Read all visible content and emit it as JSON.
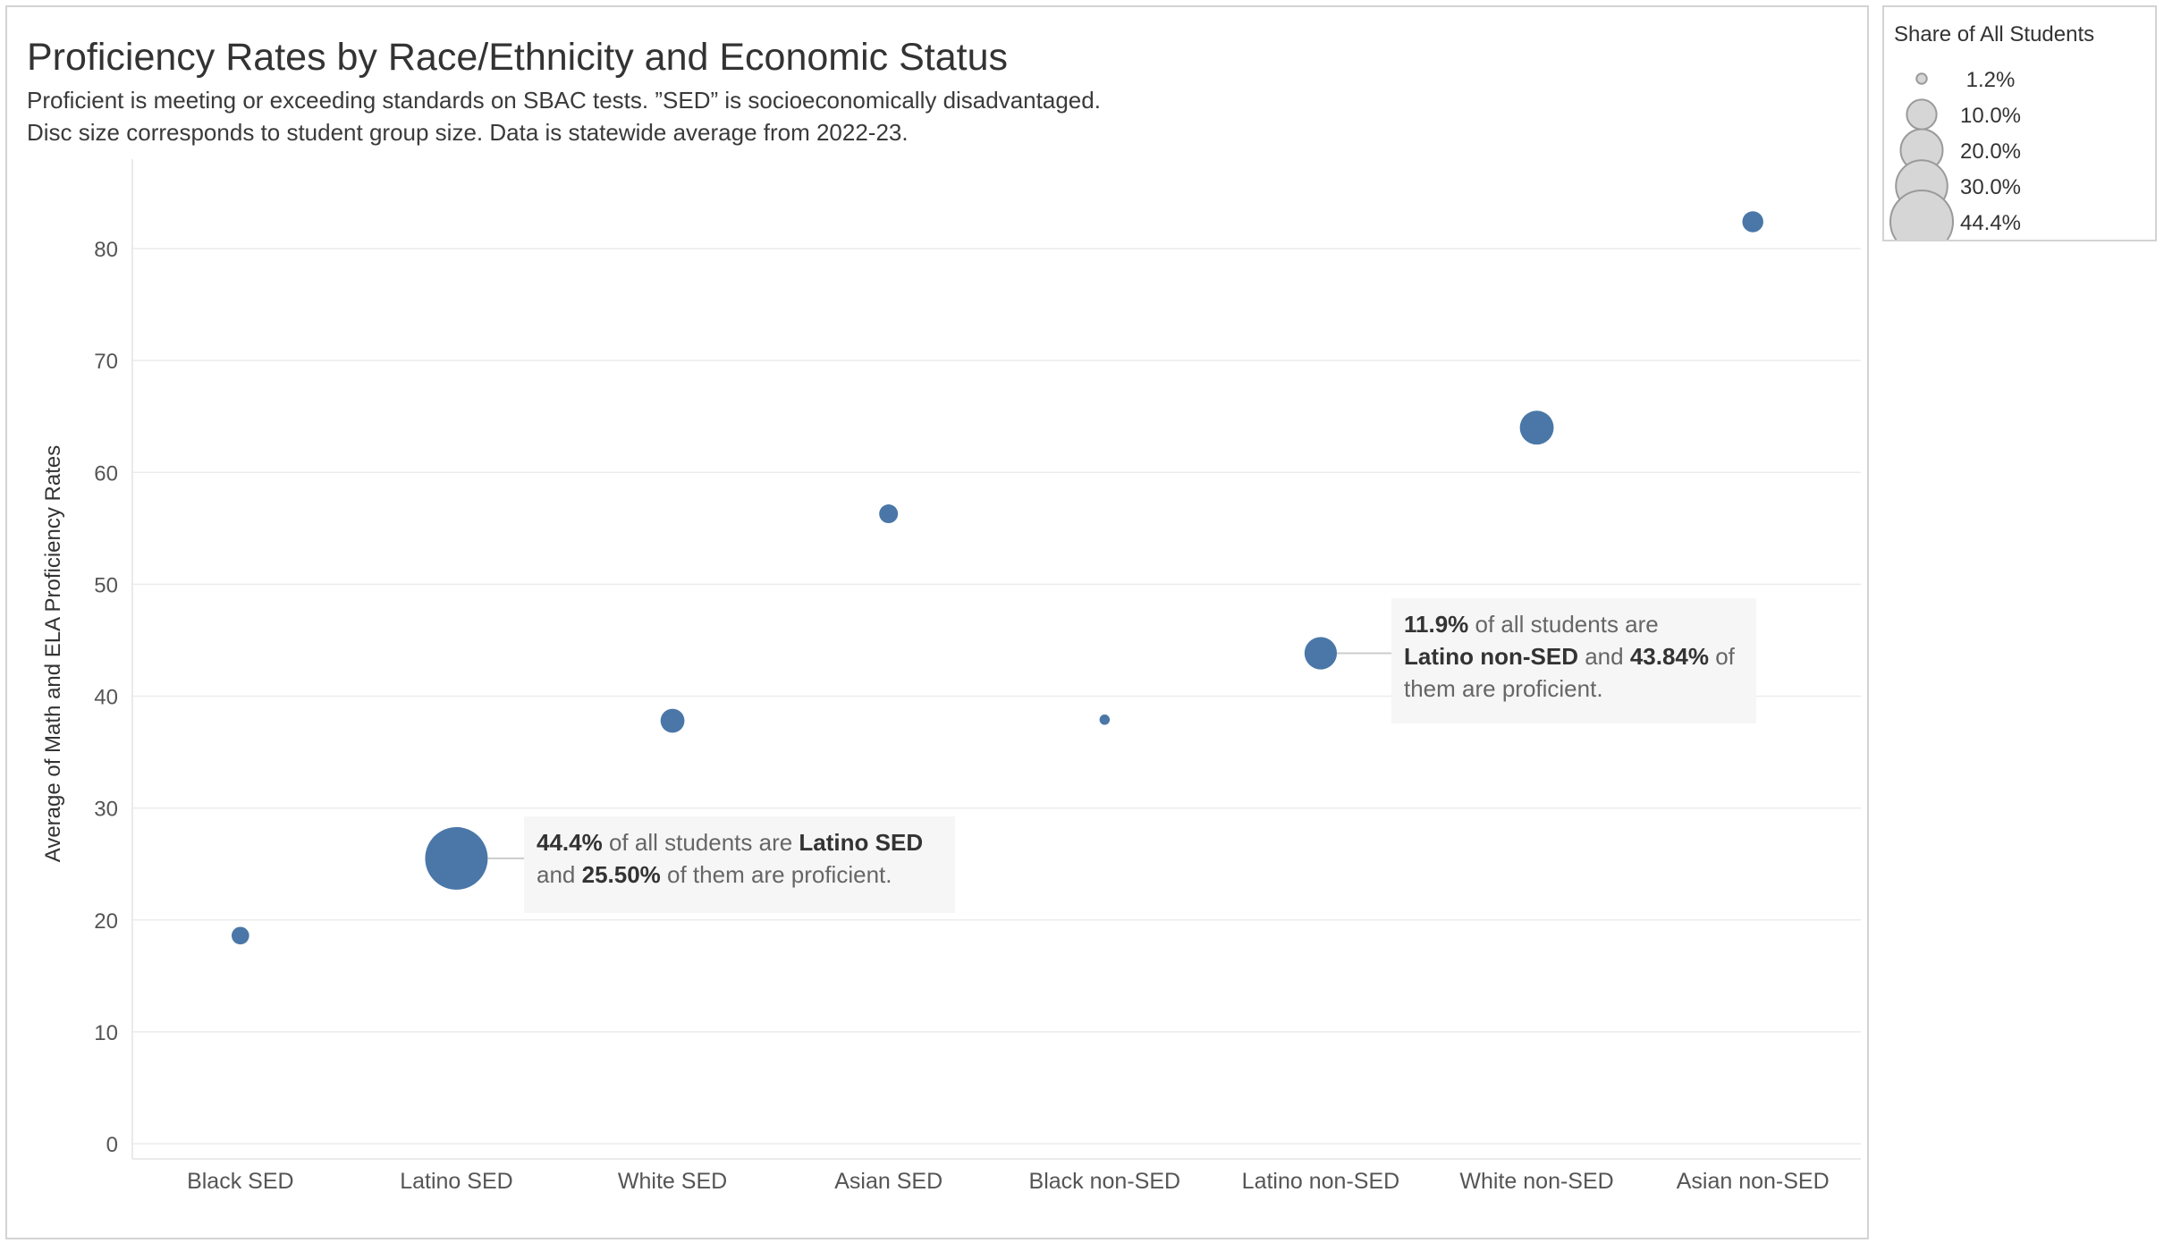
{
  "title": "Proficiency Rates by Race/Ethnicity and Economic Status",
  "subtitle_lines": [
    "Proficient is meeting or exceeding standards on SBAC tests. ”SED” is socioeconomically disadvantaged.",
    "Disc size corresponds to student group size. Data is statewide average from 2022-23."
  ],
  "colors": {
    "mark": "#4a77a8",
    "legend_disc_fill": "#d6d6d6",
    "legend_disc_stroke": "#9a9a9a",
    "annotation_bg": "#f6f6f6",
    "gridline": "#ececec"
  },
  "chart_data": {
    "type": "scatter",
    "title": "Proficiency Rates by Race/Ethnicity and Economic Status",
    "xlabel": "",
    "ylabel": "Average of Math and ELA Proficiency Rates",
    "ylim": [
      0,
      88
    ],
    "yticks": [
      0,
      10,
      20,
      30,
      40,
      50,
      60,
      70,
      80
    ],
    "grid": true,
    "categories": [
      "Black SED",
      "Latino SED",
      "White SED",
      "Asian SED",
      "Black non-SED",
      "Latino non-SED",
      "White non-SED",
      "Asian non-SED"
    ],
    "values": [
      18.6,
      25.5,
      37.8,
      56.3,
      37.9,
      43.84,
      64.0,
      82.4
    ],
    "size_values": [
      3.5,
      44.4,
      6.5,
      4.0,
      1.2,
      11.9,
      13.0,
      5.0
    ],
    "size_legend": {
      "title": "Share of All Students",
      "items": [
        {
          "label": "1.2%",
          "value": 1.2
        },
        {
          "label": "10.0%",
          "value": 10.0
        },
        {
          "label": "20.0%",
          "value": 20.0
        },
        {
          "label": "30.0%",
          "value": 30.0
        },
        {
          "label": "44.4%",
          "value": 44.4
        }
      ],
      "placement": "right"
    },
    "annotations": [
      {
        "category": "Latino SED",
        "lines": [
          [
            {
              "t": "44.4%",
              "b": true
            },
            {
              "t": " of all students are ",
              "b": false
            },
            {
              "t": "Latino SED",
              "b": true
            }
          ],
          [
            {
              "t": "and ",
              "b": false
            },
            {
              "t": "25.50%",
              "b": true
            },
            {
              "t": "  of them are proficient.",
              "b": false
            }
          ]
        ]
      },
      {
        "category": "Latino non-SED",
        "lines": [
          [
            {
              "t": "11.9%",
              "b": true
            },
            {
              "t": " of all students are",
              "b": false
            }
          ],
          [
            {
              "t": "Latino non-SED",
              "b": true
            },
            {
              "t": " and ",
              "b": false
            },
            {
              "t": "43.84%",
              "b": true
            },
            {
              "t": "  of",
              "b": false
            }
          ],
          [
            {
              "t": "them are proficient.",
              "b": false
            }
          ]
        ]
      }
    ]
  }
}
